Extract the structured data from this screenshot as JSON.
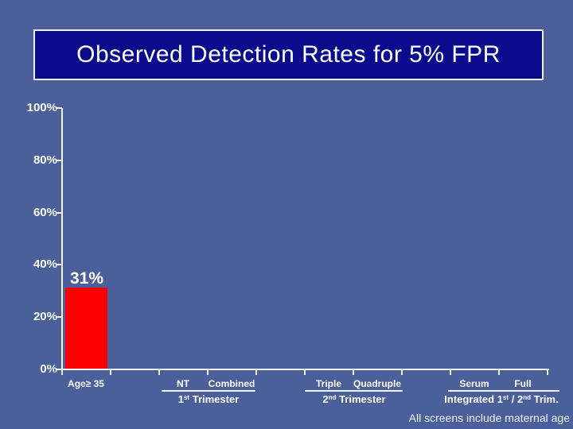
{
  "slide": {
    "title": "Observed Detection Rates for 5% FPR",
    "footnote": "All screens include maternal age",
    "colors": {
      "background": "#4b609b",
      "title_box_fill": "#0a0a8c",
      "title_box_border": "#eef1f6",
      "bar": "#fb0000",
      "text": "#ffffff"
    }
  },
  "chart_data": {
    "type": "bar",
    "title": "Observed Detection Rates for 5% FPR",
    "categories": [
      "Age≥ 35",
      "NT",
      "Combined",
      "Triple",
      "Quadruple",
      "Serum",
      "Full"
    ],
    "values": [
      31,
      null,
      null,
      null,
      null,
      null,
      null
    ],
    "data_labels": [
      "31%",
      "",
      "",
      "",
      "",
      "",
      ""
    ],
    "xlabel": "",
    "ylabel": "",
    "ylim": [
      0,
      100
    ],
    "y_tick_labels": [
      "0%",
      "20%",
      "40%",
      "60%",
      "80%",
      "100%"
    ],
    "grid": false,
    "legend": false,
    "bar_color": "#fb0000",
    "category_groups": [
      {
        "members": [
          "NT",
          "Combined"
        ],
        "label": "1st Trimester"
      },
      {
        "members": [
          "Triple",
          "Quadruple"
        ],
        "label": "2nd Trimester"
      },
      {
        "members": [
          "Serum",
          "Full"
        ],
        "label": "Integrated 1st / 2nd Trim."
      }
    ],
    "annotation": "All screens include maternal age"
  },
  "group_label_parts": {
    "first": {
      "p1": "1",
      "s1": "st",
      "p2": " Trimester"
    },
    "second": {
      "p1": "2",
      "s1": "nd",
      "p2": " Trimester"
    },
    "integrated": {
      "p1": "Integrated 1",
      "s1": "st",
      "p2": " / 2",
      "s2": "nd",
      "p3": " Trim."
    }
  }
}
